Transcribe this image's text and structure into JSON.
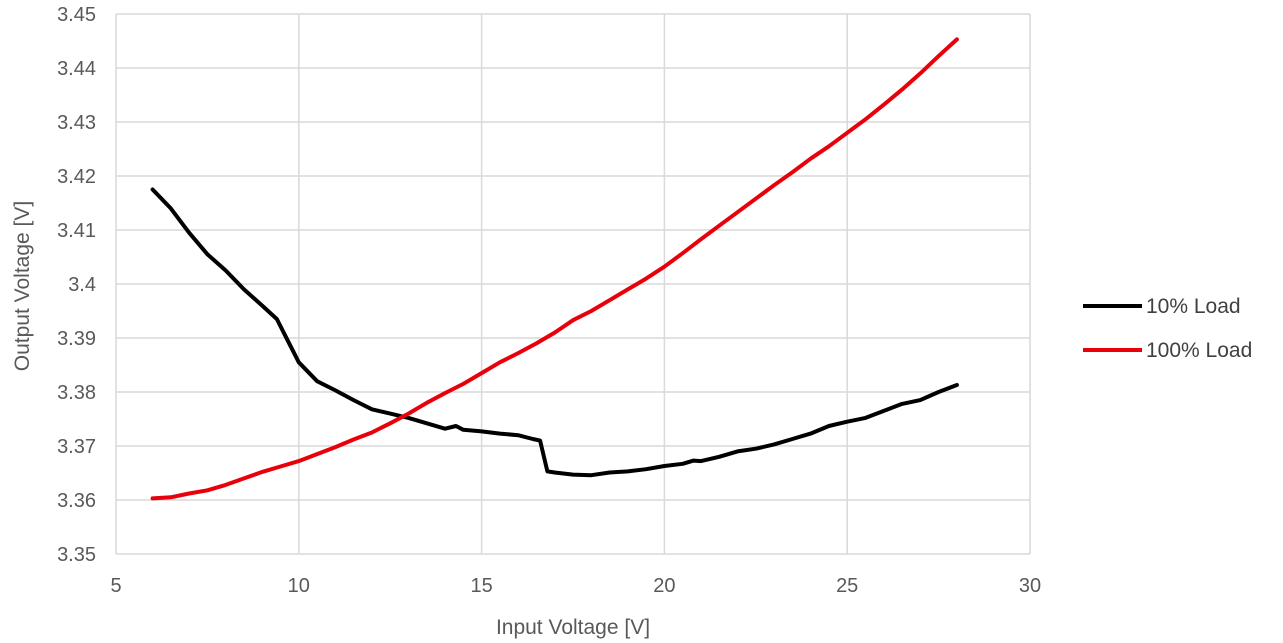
{
  "chart_data": {
    "type": "line",
    "xlabel": "Input Voltage [V]",
    "ylabel": "Output Voltage [V]",
    "xlim": [
      5,
      30
    ],
    "ylim": [
      3.35,
      3.45
    ],
    "x_ticks": [
      "5",
      "10",
      "15",
      "20",
      "25",
      "30"
    ],
    "y_ticks": [
      "3.35",
      "3.36",
      "3.37",
      "3.38",
      "3.39",
      "3.4",
      "3.41",
      "3.42",
      "3.43",
      "3.44",
      "3.45"
    ],
    "grid": true,
    "legend_position": "right",
    "series": [
      {
        "name": "10% Load",
        "color": "#000000",
        "points": [
          [
            6.0,
            3.4175
          ],
          [
            6.5,
            3.414
          ],
          [
            7.0,
            3.4095
          ],
          [
            7.5,
            3.4055
          ],
          [
            8.0,
            3.4025
          ],
          [
            8.5,
            3.399
          ],
          [
            9.0,
            3.396
          ],
          [
            9.4,
            3.3935
          ],
          [
            9.7,
            3.3895
          ],
          [
            10.0,
            3.3855
          ],
          [
            10.5,
            3.382
          ],
          [
            11.0,
            3.3803
          ],
          [
            11.5,
            3.3785
          ],
          [
            12.0,
            3.3768
          ],
          [
            12.5,
            3.376
          ],
          [
            13.0,
            3.3752
          ],
          [
            13.5,
            3.3742
          ],
          [
            14.0,
            3.3732
          ],
          [
            14.3,
            3.3737
          ],
          [
            14.5,
            3.373
          ],
          [
            15.0,
            3.3727
          ],
          [
            15.5,
            3.3723
          ],
          [
            16.0,
            3.372
          ],
          [
            16.4,
            3.3713
          ],
          [
            16.6,
            3.371
          ],
          [
            16.8,
            3.3653
          ],
          [
            17.0,
            3.3651
          ],
          [
            17.5,
            3.3647
          ],
          [
            18.0,
            3.3646
          ],
          [
            18.5,
            3.3651
          ],
          [
            19.0,
            3.3653
          ],
          [
            19.5,
            3.3657
          ],
          [
            20.0,
            3.3663
          ],
          [
            20.5,
            3.3667
          ],
          [
            20.8,
            3.3673
          ],
          [
            21.0,
            3.3672
          ],
          [
            21.5,
            3.368
          ],
          [
            22.0,
            3.369
          ],
          [
            22.5,
            3.3695
          ],
          [
            23.0,
            3.3703
          ],
          [
            23.5,
            3.3713
          ],
          [
            24.0,
            3.3723
          ],
          [
            24.5,
            3.3737
          ],
          [
            25.0,
            3.3745
          ],
          [
            25.5,
            3.3752
          ],
          [
            26.0,
            3.3765
          ],
          [
            26.5,
            3.3778
          ],
          [
            27.0,
            3.3785
          ],
          [
            27.5,
            3.38
          ],
          [
            28.0,
            3.3813
          ]
        ]
      },
      {
        "name": "100% Load",
        "color": "#e8000b",
        "points": [
          [
            6.0,
            3.3603
          ],
          [
            6.5,
            3.3605
          ],
          [
            7.0,
            3.3612
          ],
          [
            7.5,
            3.3618
          ],
          [
            8.0,
            3.3628
          ],
          [
            8.5,
            3.364
          ],
          [
            9.0,
            3.3652
          ],
          [
            9.5,
            3.3662
          ],
          [
            10.0,
            3.3672
          ],
          [
            10.5,
            3.3685
          ],
          [
            11.0,
            3.3698
          ],
          [
            11.5,
            3.3712
          ],
          [
            12.0,
            3.3725
          ],
          [
            12.5,
            3.3742
          ],
          [
            13.0,
            3.376
          ],
          [
            13.5,
            3.378
          ],
          [
            14.0,
            3.3798
          ],
          [
            14.5,
            3.3815
          ],
          [
            15.0,
            3.3835
          ],
          [
            15.5,
            3.3855
          ],
          [
            16.0,
            3.3872
          ],
          [
            16.5,
            3.389
          ],
          [
            17.0,
            3.391
          ],
          [
            17.5,
            3.3933
          ],
          [
            18.0,
            3.395
          ],
          [
            18.5,
            3.397
          ],
          [
            19.0,
            3.399
          ],
          [
            19.5,
            3.401
          ],
          [
            20.0,
            3.4032
          ],
          [
            20.5,
            3.4057
          ],
          [
            21.0,
            3.4083
          ],
          [
            21.5,
            3.4108
          ],
          [
            22.0,
            3.4133
          ],
          [
            22.5,
            3.4158
          ],
          [
            23.0,
            3.4183
          ],
          [
            23.5,
            3.4207
          ],
          [
            24.0,
            3.4232
          ],
          [
            24.5,
            3.4255
          ],
          [
            25.0,
            3.428
          ],
          [
            25.5,
            3.4305
          ],
          [
            26.0,
            3.4332
          ],
          [
            26.5,
            3.436
          ],
          [
            27.0,
            3.439
          ],
          [
            27.5,
            3.4422
          ],
          [
            28.0,
            3.4453
          ]
        ]
      }
    ]
  }
}
